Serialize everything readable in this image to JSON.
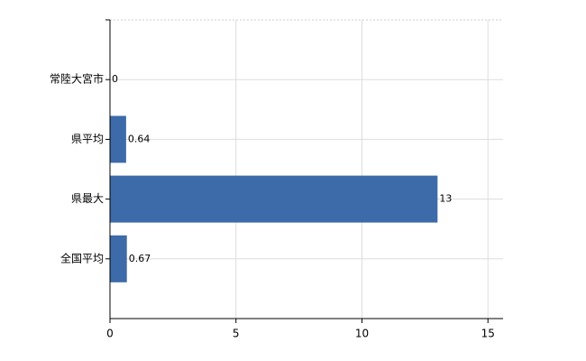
{
  "chart_data": {
    "type": "bar",
    "orientation": "horizontal",
    "categories": [
      "常陸大宮市",
      "県平均",
      "県最大",
      "全国平均"
    ],
    "values": [
      0,
      0.64,
      13,
      0.67
    ],
    "color": "#3d6aa8",
    "xlim": [
      0,
      15.6
    ],
    "xticks": [
      0,
      5,
      10,
      15
    ],
    "grid": true
  }
}
